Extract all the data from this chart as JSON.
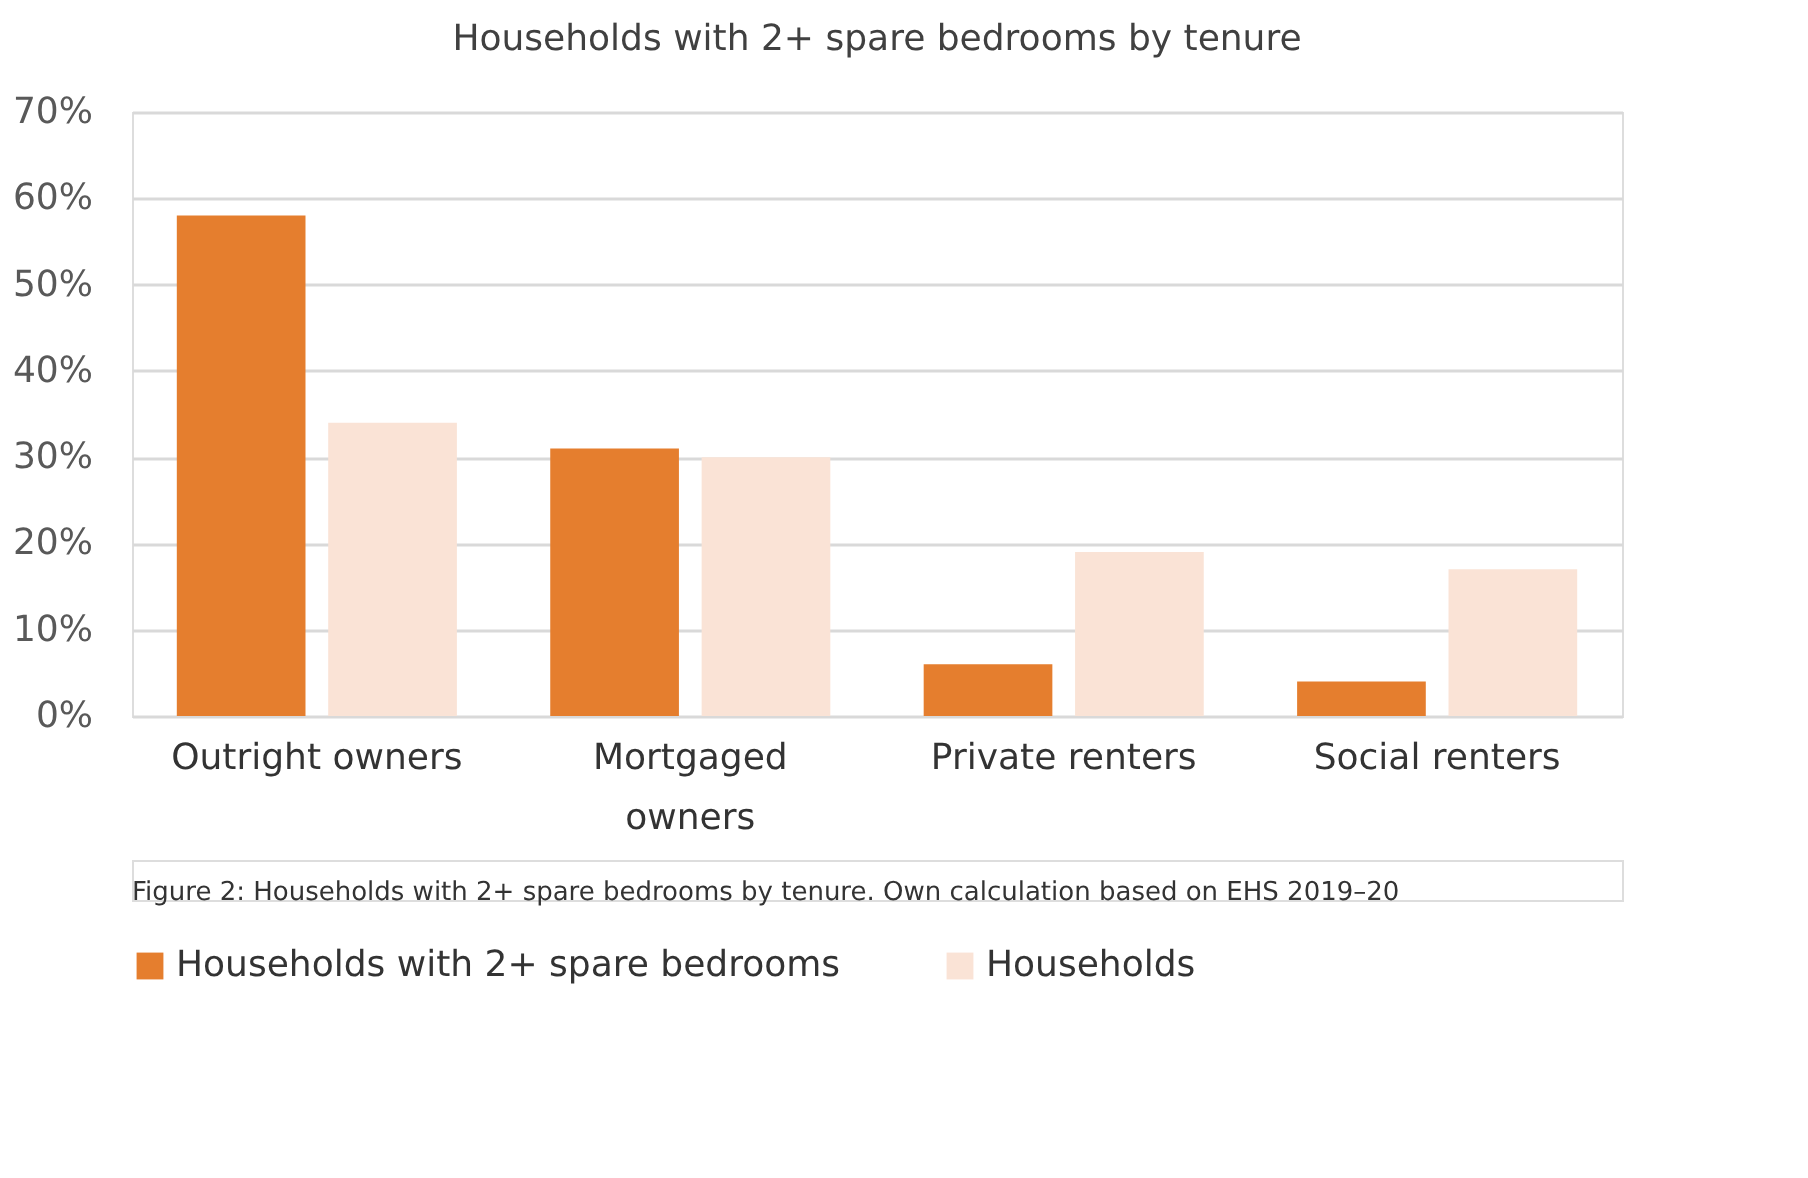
{
  "chart_data": {
    "type": "bar",
    "title": "Households with 2+ spare bedrooms by tenure",
    "categories": [
      "Outright owners",
      "Mortgaged owners",
      "Private renters",
      "Social renters"
    ],
    "series": [
      {
        "name": "Households with 2+ spare bedrooms",
        "color": "#e57e2e",
        "values": [
          58,
          31,
          6,
          4
        ]
      },
      {
        "name": "Households",
        "color": "#fae3d6",
        "values": [
          34,
          30,
          19,
          17
        ]
      }
    ],
    "ylim": [
      0,
      70
    ],
    "yticks": [
      {
        "value": 0,
        "label": "0%"
      },
      {
        "value": 10,
        "label": "10%"
      },
      {
        "value": 20,
        "label": "20%"
      },
      {
        "value": 30,
        "label": "30%"
      },
      {
        "value": 40,
        "label": "40%"
      },
      {
        "value": 50,
        "label": "50%"
      },
      {
        "value": 60,
        "label": "60%"
      },
      {
        "value": 70,
        "label": "70%"
      }
    ],
    "grid": "y",
    "legend": "bottom",
    "annotations": [
      "Figure 2: Households with 2+ spare bedrooms by tenure. Own calculation based on EHS 2019–20"
    ]
  }
}
